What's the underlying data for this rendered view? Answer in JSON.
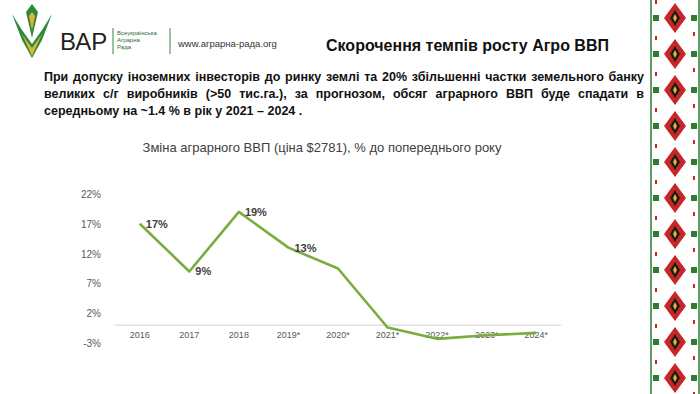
{
  "page": {
    "logo_text": "ВАР",
    "logo_subtitle": [
      "Всеукраїнська",
      "Аграрна",
      "Рада"
    ],
    "url": "www.аграрна-рада.org",
    "heading": "Скорочення темпів росту Агро ВВП",
    "paragraph": "При допуску іноземних інвесторів до ринку землі та 20% збільшенні частки земельного банку великих с/г виробників (>50 тис.га.), за прогнозом, обсяг аграрного ВВП буде спадати в середньому на ~1.4 % в рік у 2021 – 2024 ."
  },
  "chart_data": {
    "type": "line",
    "title": "Зміна аграрного ВВП (ціна $2781), % до попереднього року",
    "categories": [
      "2016",
      "2017",
      "2018",
      "2019*",
      "2020*",
      "2021*",
      "2022*",
      "2023*",
      "2024*"
    ],
    "values": [
      17,
      9,
      19,
      13,
      9.5,
      -0.4,
      -2.3,
      -1.7,
      -1.3
    ],
    "value_labels": [
      "17%",
      "9%",
      "19%",
      "13%",
      null,
      null,
      null,
      null,
      null
    ],
    "color": "#7aac3e",
    "data_labels": true,
    "grid": false,
    "ylim": [
      -3,
      22
    ],
    "yticks": [
      {
        "value": -3,
        "label": "-3%"
      },
      {
        "value": 2,
        "label": "2%"
      },
      {
        "value": 7,
        "label": "7%"
      },
      {
        "value": 12,
        "label": "12%"
      },
      {
        "value": 17,
        "label": "17%"
      },
      {
        "value": 22,
        "label": "22%"
      }
    ]
  }
}
